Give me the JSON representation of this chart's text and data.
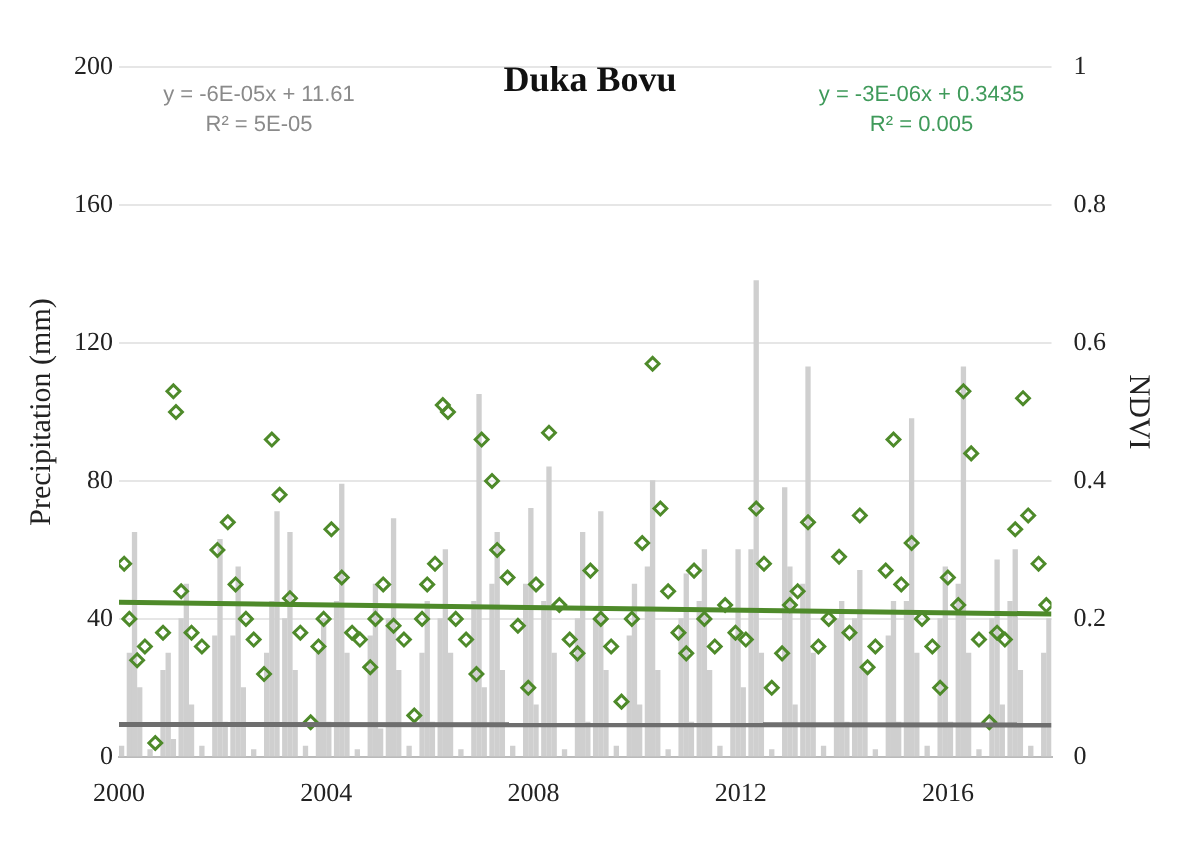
{
  "chart_data": {
    "type": "bar",
    "title": "Duka Bovu",
    "ylabel": "Precipitation (mm)",
    "y2label": "NDVI",
    "annotations": [
      "y = -6E-05x + 11.61",
      "R² = 5E-05",
      "y = -3E-06x + 0.3435",
      "R² = 0.005"
    ],
    "xlim": [
      2000,
      2018
    ],
    "xticks": [
      2000,
      2004,
      2008,
      2012,
      2016
    ],
    "ylim": [
      0,
      200
    ],
    "yticks": [
      0,
      40,
      80,
      120,
      160,
      200
    ],
    "y2lim": [
      0,
      1
    ],
    "y2ticks": [
      0,
      0.2,
      0.4,
      0.6,
      0.8,
      1
    ],
    "grid": "y",
    "legend": false,
    "series": [
      {
        "color": "#cfcfcf",
        "x": [
          2000.05,
          2000.2,
          2000.3,
          2000.4,
          2000.6,
          2000.85,
          2000.95,
          2001.05,
          2001.2,
          2001.3,
          2001.4,
          2001.6,
          2001.85,
          2001.95,
          2002.05,
          2002.2,
          2002.3,
          2002.4,
          2002.6,
          2002.85,
          2002.95,
          2003.05,
          2003.2,
          2003.3,
          2003.4,
          2003.6,
          2003.85,
          2003.95,
          2004.05,
          2004.2,
          2004.3,
          2004.4,
          2004.6,
          2004.85,
          2004.95,
          2005.05,
          2005.2,
          2005.3,
          2005.4,
          2005.6,
          2005.85,
          2005.95,
          2006.05,
          2006.2,
          2006.3,
          2006.4,
          2006.6,
          2006.85,
          2006.95,
          2007.05,
          2007.2,
          2007.3,
          2007.4,
          2007.6,
          2007.85,
          2007.95,
          2008.05,
          2008.2,
          2008.3,
          2008.4,
          2008.6,
          2008.85,
          2008.95,
          2009.05,
          2009.2,
          2009.3,
          2009.4,
          2009.6,
          2009.85,
          2009.95,
          2010.05,
          2010.2,
          2010.3,
          2010.4,
          2010.6,
          2010.85,
          2010.95,
          2011.05,
          2011.2,
          2011.3,
          2011.4,
          2011.6,
          2011.85,
          2011.95,
          2012.05,
          2012.2,
          2012.3,
          2012.4,
          2012.6,
          2012.85,
          2012.95,
          2013.05,
          2013.2,
          2013.3,
          2013.4,
          2013.6,
          2013.85,
          2013.95,
          2014.05,
          2014.2,
          2014.3,
          2014.4,
          2014.6,
          2014.85,
          2014.95,
          2015.05,
          2015.2,
          2015.3,
          2015.4,
          2015.6,
          2015.85,
          2015.95,
          2016.05,
          2016.2,
          2016.3,
          2016.4,
          2016.6,
          2016.85,
          2016.95,
          2017.05,
          2017.2,
          2017.3,
          2017.4,
          2017.6,
          2017.85,
          2017.95
        ],
        "values": [
          3,
          30,
          65,
          20,
          2,
          25,
          30,
          5,
          40,
          50,
          15,
          3,
          35,
          63,
          10,
          35,
          55,
          20,
          2,
          30,
          45,
          71,
          40,
          65,
          25,
          3,
          30,
          40,
          10,
          45,
          79,
          30,
          2,
          35,
          50,
          8,
          40,
          69,
          25,
          3,
          30,
          45,
          10,
          40,
          60,
          30,
          2,
          45,
          105,
          20,
          50,
          65,
          25,
          3,
          50,
          72,
          15,
          45,
          84,
          30,
          2,
          40,
          65,
          10,
          40,
          71,
          25,
          3,
          35,
          50,
          15,
          55,
          80,
          25,
          2,
          40,
          53,
          10,
          45,
          60,
          25,
          3,
          35,
          60,
          20,
          60,
          138,
          30,
          2,
          78,
          55,
          15,
          50,
          113,
          30,
          3,
          40,
          45,
          10,
          40,
          54,
          25,
          2,
          35,
          45,
          10,
          45,
          98,
          30,
          3,
          40,
          55,
          10,
          50,
          113,
          30,
          2,
          40,
          57,
          15,
          45,
          60,
          25,
          3,
          30,
          40
        ]
      },
      {
        "type": "scatter",
        "axis": "y2",
        "color": "#4e8a2a",
        "marker": "diamond",
        "x": [
          2000.1,
          2000.2,
          2000.35,
          2000.5,
          2000.7,
          2000.85,
          2001.05,
          2001.1,
          2001.2,
          2001.4,
          2001.6,
          2001.9,
          2002.1,
          2002.25,
          2002.45,
          2002.6,
          2002.8,
          2002.95,
          2003.1,
          2003.3,
          2003.5,
          2003.7,
          2003.85,
          2003.95,
          2004.1,
          2004.3,
          2004.5,
          2004.65,
          2004.85,
          2004.95,
          2005.1,
          2005.3,
          2005.5,
          2005.7,
          2005.85,
          2005.95,
          2006.1,
          2006.25,
          2006.35,
          2006.5,
          2006.7,
          2006.9,
          2007.0,
          2007.2,
          2007.3,
          2007.5,
          2007.7,
          2007.9,
          2008.05,
          2008.3,
          2008.5,
          2008.7,
          2008.85,
          2009.1,
          2009.3,
          2009.5,
          2009.7,
          2009.9,
          2010.1,
          2010.3,
          2010.45,
          2010.6,
          2010.8,
          2010.95,
          2011.1,
          2011.3,
          2011.5,
          2011.7,
          2011.9,
          2012.1,
          2012.3,
          2012.45,
          2012.6,
          2012.8,
          2012.95,
          2013.1,
          2013.3,
          2013.5,
          2013.7,
          2013.9,
          2014.1,
          2014.3,
          2014.45,
          2014.6,
          2014.8,
          2014.95,
          2015.1,
          2015.3,
          2015.5,
          2015.7,
          2015.85,
          2016.0,
          2016.2,
          2016.3,
          2016.45,
          2016.6,
          2016.8,
          2016.95,
          2017.1,
          2017.3,
          2017.45,
          2017.55,
          2017.75,
          2017.9
        ],
        "values": [
          0.28,
          0.2,
          0.14,
          0.16,
          0.02,
          0.18,
          0.53,
          0.5,
          0.24,
          0.18,
          0.16,
          0.3,
          0.34,
          0.25,
          0.2,
          0.17,
          0.12,
          0.46,
          0.38,
          0.23,
          0.18,
          0.05,
          0.16,
          0.2,
          0.33,
          0.26,
          0.18,
          0.17,
          0.13,
          0.2,
          0.25,
          0.19,
          0.17,
          0.06,
          0.2,
          0.25,
          0.28,
          0.51,
          0.5,
          0.2,
          0.17,
          0.12,
          0.46,
          0.4,
          0.3,
          0.26,
          0.19,
          0.1,
          0.25,
          0.47,
          0.22,
          0.17,
          0.15,
          0.27,
          0.2,
          0.16,
          0.08,
          0.2,
          0.31,
          0.57,
          0.36,
          0.24,
          0.18,
          0.15,
          0.27,
          0.2,
          0.16,
          0.22,
          0.18,
          0.17,
          0.36,
          0.28,
          0.1,
          0.15,
          0.22,
          0.24,
          0.34,
          0.16,
          0.2,
          0.29,
          0.18,
          0.35,
          0.13,
          0.16,
          0.27,
          0.46,
          0.25,
          0.31,
          0.2,
          0.16,
          0.1,
          0.26,
          0.22,
          0.53,
          0.44,
          0.17,
          0.05,
          0.18,
          0.17,
          0.33,
          0.52,
          0.35,
          0.28,
          0.22
        ]
      },
      {
        "type": "line",
        "color": "#6e6e6e",
        "x": [
          2000,
          2018
        ],
        "values": [
          9.4,
          9.2
        ]
      },
      {
        "type": "line",
        "axis": "y2",
        "color": "#4e8a2a",
        "x": [
          2000,
          2018
        ],
        "values": [
          0.224,
          0.207
        ]
      }
    ]
  }
}
